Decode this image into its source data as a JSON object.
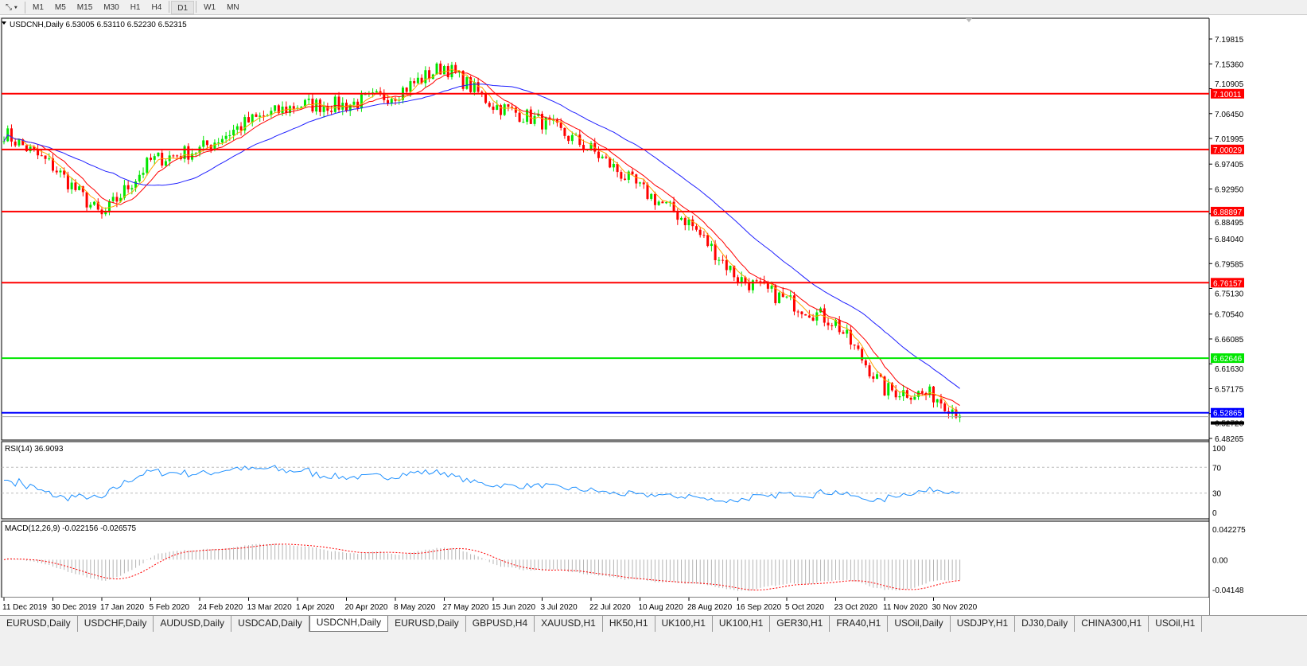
{
  "toolbar": {
    "timeframes": [
      "M1",
      "M5",
      "M15",
      "M30",
      "H1",
      "H4",
      "D1",
      "W1",
      "MN"
    ],
    "active": "D1"
  },
  "chart": {
    "header": "USDCNH,Daily  6.53005 6.53110 6.52230 6.52315",
    "symbol": "USDCNH",
    "timeframe": "Daily",
    "current_price": "6.52315"
  },
  "chart_data": {
    "type": "candlestick",
    "price_ticks": [
      "7.19815",
      "7.15360",
      "7.10905",
      "7.06450",
      "7.01995",
      "6.97405",
      "6.92950",
      "6.88495",
      "6.84040",
      "6.79585",
      "6.75130",
      "6.70540",
      "6.66085",
      "6.61630",
      "6.57175",
      "6.52720",
      "6.48265"
    ],
    "ylim": [
      6.48265,
      7.19815
    ],
    "date_labels": [
      "11 Dec 2019",
      "30 Dec 2019",
      "17 Jan 2020",
      "5 Feb 2020",
      "24 Feb 2020",
      "13 Mar 2020",
      "1 Apr 2020",
      "20 Apr 2020",
      "8 May 2020",
      "27 May 2020",
      "15 Jun 2020",
      "3 Jul 2020",
      "22 Jul 2020",
      "10 Aug 2020",
      "28 Aug 2020",
      "16 Sep 2020",
      "5 Oct 2020",
      "23 Oct 2020",
      "11 Nov 2020",
      "30 Nov 2020"
    ],
    "approx_close_at_labels": [
      7.03,
      6.97,
      6.88,
      6.98,
      7.0,
      7.05,
      7.08,
      7.08,
      7.1,
      7.15,
      7.08,
      7.05,
      7.0,
      6.93,
      6.87,
      6.77,
      6.73,
      6.69,
      6.57,
      6.56
    ],
    "last_close": 6.52315,
    "levels": [
      {
        "value": "7.10011",
        "color": "#ff0000"
      },
      {
        "value": "7.00029",
        "color": "#ff0000"
      },
      {
        "value": "6.88897",
        "color": "#ff0000"
      },
      {
        "value": "6.76157",
        "color": "#ff0000"
      },
      {
        "value": "6.62646",
        "color": "#00e600"
      },
      {
        "value": "6.52865",
        "color": "#0000ff"
      }
    ],
    "moving_averages": [
      {
        "color": "#ff0000"
      },
      {
        "color": "#ffa500"
      },
      {
        "color": "#2020ff"
      }
    ],
    "bull_color": "#00e600",
    "bear_color": "#ff0000"
  },
  "rsi": {
    "label": "RSI(14) 36.9093",
    "ticks": [
      "100",
      "70",
      "30",
      "0"
    ],
    "color": "#1e90ff"
  },
  "macd": {
    "label": "MACD(12,26,9) -0.022156 -0.026575",
    "ticks": [
      "0.042275",
      "0.00",
      "-0.04148"
    ]
  },
  "tabs": [
    "EURUSD,Daily",
    "USDCHF,Daily",
    "AUDUSD,Daily",
    "USDCAD,Daily",
    "USDCNH,Daily",
    "EURUSD,Daily",
    "GBPUSD,H4",
    "XAUUSD,H1",
    "HK50,H1",
    "UK100,H1",
    "UK100,H1",
    "GER30,H1",
    "FRA40,H1",
    "USOil,Daily",
    "USDJPY,H1",
    "DJ30,Daily",
    "CHINA300,H1",
    "USOil,H1"
  ],
  "active_tab": 4
}
